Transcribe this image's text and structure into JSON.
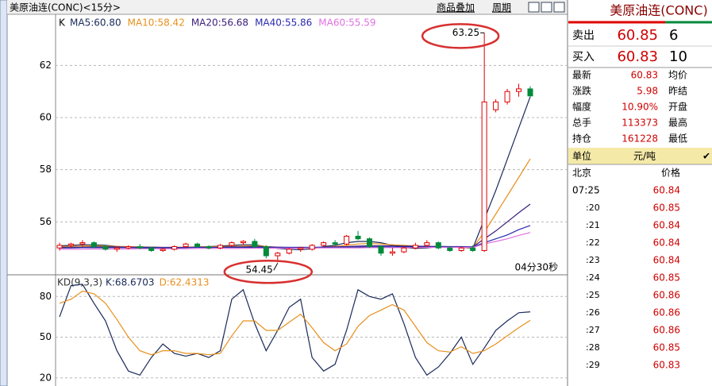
{
  "header": {
    "title": "美原油连(CONC)<15分>",
    "buttons": [
      "商品叠加",
      "周期"
    ]
  },
  "chart_data": [
    {
      "type": "candlestick",
      "axis_label": "K",
      "open": [
        55.0,
        55.1,
        55.15,
        55.2,
        55.05,
        54.95,
        55.0,
        55.05,
        55.0,
        54.9,
        54.95,
        55.05,
        55.15,
        55.05,
        55.0,
        55.1,
        55.2,
        55.25,
        55.05,
        54.7,
        54.8,
        54.95,
        54.95,
        55.1,
        55.2,
        55.15,
        55.45,
        55.35,
        55.05,
        54.8,
        54.85,
        55.0,
        55.1,
        55.2,
        55.0,
        54.9,
        55.0,
        54.9,
        60.3,
        60.6,
        61.0,
        61.1
      ],
      "high": [
        55.2,
        55.2,
        55.3,
        55.25,
        55.1,
        55.05,
        55.1,
        55.15,
        55.05,
        55.0,
        55.1,
        55.2,
        55.2,
        55.1,
        55.15,
        55.25,
        55.3,
        55.35,
        55.1,
        54.85,
        55.0,
        55.05,
        55.15,
        55.25,
        55.3,
        55.5,
        55.65,
        55.4,
        55.1,
        55.0,
        55.05,
        55.2,
        55.3,
        55.25,
        55.05,
        55.05,
        55.1,
        63.25,
        60.7,
        61.1,
        61.3,
        61.2
      ],
      "low": [
        54.9,
        55.0,
        55.05,
        55.0,
        54.9,
        54.85,
        54.95,
        54.95,
        54.85,
        54.85,
        54.9,
        55.0,
        55.0,
        54.95,
        54.95,
        55.05,
        55.1,
        55.0,
        54.6,
        54.45,
        54.75,
        54.85,
        54.9,
        55.05,
        55.1,
        55.1,
        55.3,
        55.0,
        54.7,
        54.7,
        54.8,
        54.95,
        55.05,
        54.95,
        54.85,
        54.85,
        54.85,
        54.85,
        60.2,
        60.5,
        60.8,
        60.8
      ],
      "close": [
        55.1,
        55.15,
        55.2,
        55.05,
        54.95,
        55.0,
        55.05,
        55.0,
        54.9,
        54.95,
        55.05,
        55.15,
        55.05,
        55.0,
        55.1,
        55.2,
        55.25,
        55.05,
        54.7,
        54.8,
        54.95,
        55.0,
        55.1,
        55.2,
        55.15,
        55.45,
        55.35,
        55.05,
        54.8,
        54.85,
        55.0,
        55.1,
        55.2,
        55.0,
        54.9,
        55.0,
        54.9,
        60.6,
        60.6,
        61.0,
        61.1,
        60.83
      ],
      "up_color": "#e00000",
      "down_color": "#008a3c",
      "series": [
        {
          "name": "MA5",
          "legend_label": "MA5:60.80",
          "color": "#1a2a5a",
          "values": [
            55.08,
            55.1,
            55.12,
            55.12,
            55.1,
            55.06,
            55.02,
            55.0,
            54.98,
            54.97,
            54.99,
            55.02,
            55.04,
            55.05,
            55.07,
            55.1,
            55.12,
            55.12,
            55.05,
            54.98,
            54.95,
            54.93,
            54.97,
            55.05,
            55.1,
            55.2,
            55.25,
            55.25,
            55.2,
            55.1,
            55.02,
            54.98,
            55.0,
            55.05,
            55.03,
            55.02,
            54.99,
            56.1,
            57.2,
            58.4,
            59.6,
            60.8
          ]
        },
        {
          "name": "MA10",
          "legend_label": "MA10:58.42",
          "color": "#e8901e",
          "values": [
            55.05,
            55.06,
            55.07,
            55.08,
            55.07,
            55.06,
            55.05,
            55.04,
            55.03,
            55.02,
            55.02,
            55.03,
            55.04,
            55.05,
            55.05,
            55.06,
            55.07,
            55.08,
            55.06,
            55.03,
            55.01,
            55.0,
            55.01,
            55.03,
            55.06,
            55.1,
            55.15,
            55.17,
            55.15,
            55.12,
            55.1,
            55.07,
            55.05,
            55.04,
            55.03,
            55.02,
            55.01,
            55.6,
            56.3,
            57.0,
            57.7,
            58.42
          ]
        },
        {
          "name": "MA20",
          "legend_label": "MA20:56.68",
          "color": "#3a1e7a",
          "values": [
            55.02,
            55.03,
            55.03,
            55.04,
            55.04,
            55.04,
            55.03,
            55.03,
            55.03,
            55.02,
            55.02,
            55.02,
            55.03,
            55.03,
            55.03,
            55.04,
            55.04,
            55.05,
            55.04,
            55.03,
            55.02,
            55.02,
            55.02,
            55.03,
            55.04,
            55.05,
            55.07,
            55.08,
            55.08,
            55.08,
            55.07,
            55.07,
            55.06,
            55.06,
            55.05,
            55.05,
            55.04,
            55.35,
            55.65,
            56.0,
            56.35,
            56.68
          ]
        },
        {
          "name": "MA40",
          "legend_label": "MA40:55.86",
          "color": "#2a2ab0",
          "values": [
            55.0,
            55.0,
            55.01,
            55.01,
            55.01,
            55.01,
            55.01,
            55.01,
            55.01,
            55.01,
            55.01,
            55.01,
            55.02,
            55.02,
            55.02,
            55.02,
            55.02,
            55.02,
            55.02,
            55.02,
            55.02,
            55.02,
            55.02,
            55.02,
            55.03,
            55.03,
            55.03,
            55.04,
            55.04,
            55.04,
            55.04,
            55.04,
            55.04,
            55.04,
            55.04,
            55.04,
            55.04,
            55.2,
            55.35,
            55.5,
            55.7,
            55.86
          ]
        },
        {
          "name": "MA60",
          "legend_label": "MA60:55.59",
          "color": "#e070e0",
          "values": [
            54.95,
            54.95,
            54.95,
            54.96,
            54.96,
            54.96,
            54.96,
            54.97,
            54.97,
            54.97,
            54.97,
            54.97,
            54.98,
            54.98,
            54.98,
            54.98,
            54.98,
            54.99,
            54.99,
            54.99,
            54.99,
            54.99,
            55.0,
            55.0,
            55.0,
            55.0,
            55.0,
            55.01,
            55.01,
            55.01,
            55.01,
            55.01,
            55.02,
            55.02,
            55.02,
            55.02,
            55.02,
            55.15,
            55.25,
            55.35,
            55.48,
            55.59
          ]
        }
      ],
      "ylim": [
        54.0,
        63.9
      ],
      "yticks": [
        56,
        58,
        60,
        62
      ],
      "grid": true,
      "annotations": {
        "high": "63.25",
        "low": "54.45",
        "countdown": "04分30秒"
      }
    },
    {
      "type": "line",
      "title": "KD(9,3,3)",
      "ylim": [
        14,
        95.4
      ],
      "yticks": [
        20,
        50,
        80
      ],
      "grid": true,
      "series": [
        {
          "name": "K",
          "legend_label": "K:68.6703",
          "color": "#1a2a5a",
          "values": [
            65,
            88,
            89,
            75,
            62,
            40,
            25,
            22,
            35,
            45,
            38,
            36,
            38,
            35,
            40,
            78,
            85,
            60,
            40,
            55,
            72,
            78,
            35,
            25,
            30,
            55,
            85,
            80,
            78,
            82,
            60,
            35,
            22,
            28,
            38,
            50,
            30,
            42,
            55,
            62,
            68,
            68.6703
          ]
        },
        {
          "name": "D",
          "legend_label": "D:62.4313",
          "color": "#e8901e",
          "values": [
            75,
            78,
            84,
            82,
            75,
            63,
            50,
            40,
            37,
            40,
            40,
            38,
            38,
            37,
            38,
            51,
            62,
            62,
            55,
            55,
            61,
            67,
            57,
            46,
            40,
            45,
            58,
            66,
            70,
            74,
            70,
            58,
            46,
            40,
            39,
            43,
            38,
            40,
            45,
            51,
            57,
            62.4313
          ]
        }
      ]
    }
  ],
  "quote": {
    "title": "美原油连(CONC)",
    "ask": [
      "卖出",
      "60.85",
      "6"
    ],
    "bid": [
      "买入",
      "60.83",
      "10"
    ],
    "rows": [
      [
        "最新",
        "60.83",
        "均价"
      ],
      [
        "涨跌",
        "5.98",
        "昨结"
      ],
      [
        "幅度",
        "10.90%",
        "开盘"
      ],
      [
        "总手",
        "113373",
        "最高"
      ],
      [
        "持仓",
        "161228",
        "最低"
      ]
    ],
    "unit": [
      "单位",
      "元/吨"
    ],
    "ticks_header": [
      "北京",
      "价格"
    ],
    "ticks": [
      [
        "07:25",
        "60.84"
      ],
      [
        ":20",
        "60.85"
      ],
      [
        ":21",
        "60.84"
      ],
      [
        ":22",
        "60.84"
      ],
      [
        ":23",
        "60.84"
      ],
      [
        ":24",
        "60.85"
      ],
      [
        ":25",
        "60.86"
      ],
      [
        ":26",
        "60.86"
      ],
      [
        ":27",
        "60.86"
      ],
      [
        ":28",
        "60.85"
      ],
      [
        ":29",
        "60.83"
      ]
    ]
  }
}
